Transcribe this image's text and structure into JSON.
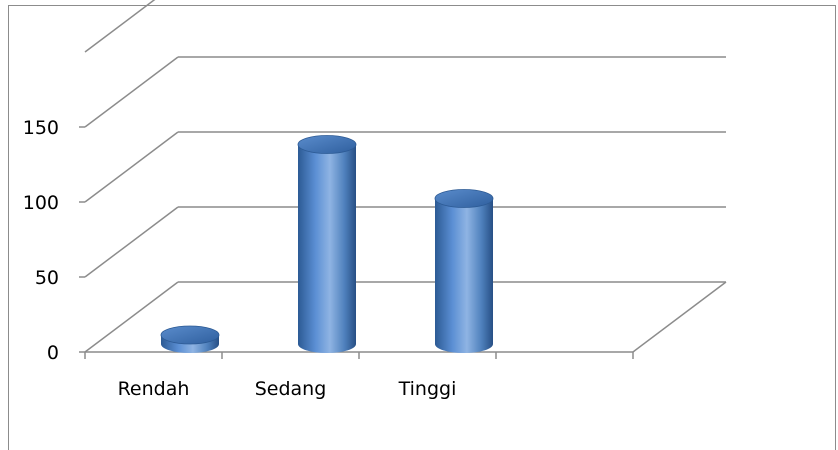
{
  "chart_data": {
    "type": "bar",
    "style": "3d-cylinder",
    "categories": [
      "Rendah",
      "Sedang",
      "Tinggi"
    ],
    "values": [
      6,
      133,
      97
    ],
    "ylim": [
      0,
      200
    ],
    "yticks": [
      "0",
      "50",
      "100",
      "150"
    ],
    "grid": true,
    "legend": "none",
    "colors": {
      "bar": "#4f81bd",
      "bar_dark": "#2c5a94",
      "bar_light": "#8fb4e3",
      "top": "#3a6fb0",
      "grid": "#8c8c8c"
    }
  }
}
